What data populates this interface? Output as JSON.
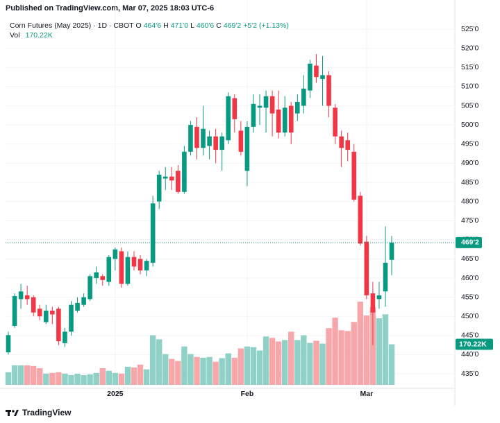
{
  "chart_data": {
    "type": "candlestick",
    "published": "Published on TradingView.com, Mar 07, 2025 18:03 UTC-6",
    "title": "Corn Futures (May 2025) · 1D · CBOT",
    "legend": {
      "o": "O",
      "open_label": "464'6",
      "h": "H",
      "high_label": "471'0",
      "l": "L",
      "low_label": "460'6",
      "c": "C",
      "close_label": "469'2",
      "change_label": "+5'2 (+1.13%)",
      "vol": "Vol",
      "volume_label": "170.22K"
    },
    "footer": "TradingView",
    "categories": [
      null,
      null,
      null,
      null,
      null,
      null,
      null,
      null,
      null,
      null,
      null,
      null,
      null,
      null,
      null,
      null,
      null,
      "2025",
      null,
      null,
      null,
      null,
      null,
      null,
      null,
      null,
      null,
      null,
      null,
      null,
      null,
      null,
      null,
      null,
      null,
      null,
      null,
      null,
      "Feb",
      null,
      null,
      null,
      null,
      null,
      null,
      null,
      null,
      null,
      null,
      null,
      null,
      null,
      null,
      null,
      null,
      null,
      null,
      "Mar",
      null,
      null,
      null,
      null
    ],
    "open": [
      440.6,
      447.5,
      454.5,
      455.5,
      455,
      452,
      448.5,
      451.5,
      452,
      443,
      446,
      451.5,
      453,
      454.5,
      460,
      460.5,
      459,
      465,
      467,
      458.5,
      465.5,
      465,
      462,
      464,
      480,
      486,
      486.5,
      488,
      482.5,
      493,
      499.5,
      494,
      494.5,
      497,
      493.5,
      496,
      507,
      498.5,
      488,
      499.5,
      504.5,
      504.5,
      507.5,
      504,
      498,
      505,
      503,
      505,
      509,
      515.5,
      512,
      513,
      504.5,
      497,
      496,
      493,
      481.5,
      469.5,
      456,
      454.5,
      456.5,
      464.75
    ],
    "high": [
      446,
      456,
      458.5,
      458,
      455.5,
      453,
      453,
      452.5,
      452.5,
      447,
      454,
      455,
      456,
      461,
      463,
      461,
      466,
      468,
      468,
      467,
      467,
      466,
      465,
      481.5,
      488,
      489,
      489,
      489.5,
      494.5,
      501,
      502,
      505,
      498.5,
      499,
      498,
      508.5,
      508,
      501,
      501,
      508,
      508,
      509,
      509,
      509,
      507.5,
      506,
      508,
      513,
      517,
      518.5,
      518,
      514,
      505.5,
      498.5,
      498,
      495,
      482.5,
      471,
      459,
      459,
      473.5,
      471
    ],
    "low": [
      440,
      447,
      452,
      453,
      450,
      449,
      448,
      448,
      442.5,
      442,
      445,
      451,
      452.5,
      454,
      458.5,
      458,
      458,
      462,
      457.5,
      458,
      462,
      461,
      460.5,
      463,
      478,
      483,
      483,
      482,
      482,
      492,
      491,
      492,
      491,
      490,
      488,
      495,
      498,
      492,
      484,
      498,
      500,
      498,
      497,
      496.5,
      497,
      495,
      501,
      503,
      507,
      511,
      505,
      502,
      495,
      489,
      490.5,
      480,
      468.5,
      454.5,
      442.5,
      452,
      452.5,
      460.75
    ],
    "close": [
      445.1,
      455.3,
      456.5,
      454.5,
      451,
      450,
      451.5,
      450.5,
      443.5,
      446,
      453,
      453.5,
      455,
      460.5,
      461.5,
      459.5,
      465.5,
      467.5,
      458.5,
      465.5,
      463,
      462,
      464.5,
      479.5,
      487,
      486.5,
      485.5,
      482.5,
      493,
      500,
      494,
      499,
      497,
      493.5,
      497,
      507.5,
      501.5,
      493,
      499.5,
      505.5,
      505,
      507.5,
      503,
      498,
      504.5,
      498,
      506,
      509.5,
      516,
      512.5,
      513,
      505,
      497,
      494,
      493.5,
      480.5,
      469,
      455.5,
      451,
      455.5,
      464,
      469.25
    ],
    "volume": [
      53,
      82,
      82,
      82,
      79,
      70,
      47,
      50,
      53,
      47,
      41,
      47,
      41,
      44,
      50,
      70,
      59,
      50,
      47,
      76,
      73,
      85,
      65,
      208,
      191,
      129,
      109,
      100,
      161,
      129,
      117,
      114,
      117,
      97,
      112,
      132,
      114,
      153,
      161,
      158,
      144,
      203,
      197,
      182,
      188,
      223,
      188,
      208,
      176,
      185,
      173,
      238,
      282,
      229,
      226,
      264,
      349,
      291,
      326,
      279,
      296,
      170.22
    ],
    "up_color": "#089981",
    "down_color": "#f23645",
    "volume_up_color": "#8fd1c6",
    "volume_down_color": "#f7a6a9",
    "ylim": [
      431.2,
      527.2
    ],
    "yticks": [
      {
        "value": 435,
        "label": "435'0"
      },
      {
        "value": 440,
        "label": "440'0"
      },
      {
        "value": 445,
        "label": "445'0"
      },
      {
        "value": 450,
        "label": "450'0"
      },
      {
        "value": 455,
        "label": "455'0"
      },
      {
        "value": 460,
        "label": "460'0"
      },
      {
        "value": 465,
        "label": "465'0"
      },
      {
        "value": 470,
        "label": "470'0"
      },
      {
        "value": 475,
        "label": "475'0"
      },
      {
        "value": 480,
        "label": "480'0"
      },
      {
        "value": 485,
        "label": "485'0"
      },
      {
        "value": 490,
        "label": "490'0"
      },
      {
        "value": 495,
        "label": "495'0"
      },
      {
        "value": 500,
        "label": "500'0"
      },
      {
        "value": 505,
        "label": "505'0"
      },
      {
        "value": 510,
        "label": "510'0"
      },
      {
        "value": 515,
        "label": "515'0"
      },
      {
        "value": 520,
        "label": "520'0"
      },
      {
        "value": 525,
        "label": "525'0"
      }
    ],
    "grid": true
  }
}
